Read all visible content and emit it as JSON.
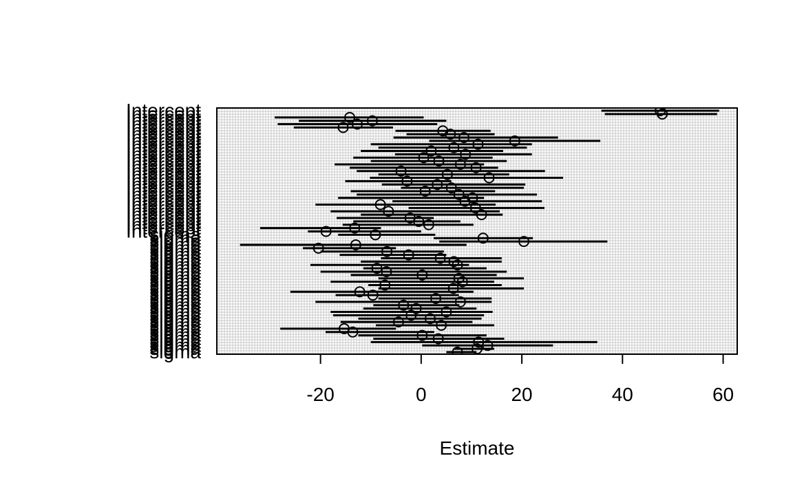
{
  "chart_data": {
    "type": "forest",
    "title": "",
    "xlabel": "Estimate",
    "ylabel": "",
    "xlim": [
      -40.6,
      62.8
    ],
    "xticks": [
      -20,
      0,
      20,
      40,
      60
    ],
    "xtick_labels": [
      "-20",
      "0",
      "20",
      "40",
      "60"
    ],
    "grid": true,
    "legend": "none",
    "row_labels": [
      "Intercept",
      "Intercept",
      "Intercept",
      "Intercept",
      "sigma",
      "sigma",
      "sigma",
      "sigma"
    ],
    "estimates": [
      {
        "est": 47.5,
        "lo": 35.8,
        "hi": 59.2
      },
      {
        "est": 47.9,
        "lo": 36.5,
        "hi": 58.8
      },
      {
        "est": -14.2,
        "lo": -29.1,
        "hi": 0.5
      },
      {
        "est": -9.7,
        "lo": -24.3,
        "hi": 5.0
      },
      {
        "est": -12.7,
        "lo": -28.5,
        "hi": 3.2
      },
      {
        "est": -15.5,
        "lo": -25.3,
        "hi": -5.6
      },
      {
        "est": 4.3,
        "lo": -5.1,
        "hi": 13.8
      },
      {
        "est": 5.8,
        "lo": -2.9,
        "hi": 14.6
      },
      {
        "est": 8.5,
        "lo": -5.5,
        "hi": 27.2
      },
      {
        "est": 18.6,
        "lo": 1.6,
        "hi": 35.6
      },
      {
        "est": 11.3,
        "lo": -10.0,
        "hi": 22.0
      },
      {
        "est": 6.5,
        "lo": -8.5,
        "hi": 21.0
      },
      {
        "est": 2.0,
        "lo": -12.0,
        "hi": 16.3
      },
      {
        "est": 8.8,
        "lo": -5.2,
        "hi": 22.0
      },
      {
        "est": 0.5,
        "lo": -13.5,
        "hi": 14.2
      },
      {
        "est": 3.5,
        "lo": -10.0,
        "hi": 17.0
      },
      {
        "est": 7.8,
        "lo": -17.2,
        "hi": 12.5
      },
      {
        "est": 10.9,
        "lo": -14.2,
        "hi": 15.3
      },
      {
        "est": -4.0,
        "lo": -12.8,
        "hi": 24.6
      },
      {
        "est": 5.2,
        "lo": -8.5,
        "hi": 17.5
      },
      {
        "est": 13.5,
        "lo": -10.2,
        "hi": 28.2
      },
      {
        "est": -2.8,
        "lo": -15.1,
        "hi": 6.0
      },
      {
        "est": 3.2,
        "lo": -7.8,
        "hi": 20.7
      },
      {
        "est": 6.0,
        "lo": -4.0,
        "hi": 20.4
      },
      {
        "est": 0.8,
        "lo": -14.0,
        "hi": 14.7
      },
      {
        "est": 7.5,
        "lo": -12.8,
        "hi": 23.0
      },
      {
        "est": 10.2,
        "lo": -16.5,
        "hi": 12.5
      },
      {
        "est": 8.7,
        "lo": -5.7,
        "hi": 24.0
      },
      {
        "est": -8.1,
        "lo": -21.0,
        "hi": 14.8
      },
      {
        "est": 10.8,
        "lo": -2.5,
        "hi": 24.5
      },
      {
        "est": -6.5,
        "lo": -18.0,
        "hi": 15.6
      },
      {
        "est": 12.0,
        "lo": -12.0,
        "hi": 16.2
      },
      {
        "est": -2.2,
        "lo": -16.8,
        "hi": 2.5
      },
      {
        "est": -0.5,
        "lo": -13.5,
        "hi": 7.8
      },
      {
        "est": 1.5,
        "lo": -15.6,
        "hi": 10.4
      },
      {
        "est": -13.2,
        "lo": -32.0,
        "hi": -8.0
      },
      {
        "est": -18.9,
        "lo": -22.5,
        "hi": 0.0
      },
      {
        "est": -9.1,
        "lo": -16.5,
        "hi": 2.8
      },
      {
        "est": 12.3,
        "lo": 2.5,
        "hi": 22.2
      },
      {
        "est": 20.4,
        "lo": 3.6,
        "hi": 37.0
      },
      {
        "est": -13.0,
        "lo": -36.0,
        "hi": 9.0
      },
      {
        "est": -20.4,
        "lo": -23.5,
        "hi": -5.0
      },
      {
        "est": -6.8,
        "lo": -20.0,
        "hi": 4.5
      },
      {
        "est": -2.5,
        "lo": -16.2,
        "hi": 5.0
      },
      {
        "est": 3.8,
        "lo": -8.0,
        "hi": 16.0
      },
      {
        "est": 6.5,
        "lo": -12.0,
        "hi": 16.0
      },
      {
        "est": 7.2,
        "lo": -22.0,
        "hi": 9.5
      },
      {
        "est": -8.8,
        "lo": -11.5,
        "hi": 13.0
      },
      {
        "est": -6.9,
        "lo": -20.0,
        "hi": 17.0
      },
      {
        "est": 0.2,
        "lo": -14.0,
        "hi": 15.0
      },
      {
        "est": 7.5,
        "lo": -8.5,
        "hi": 20.4
      },
      {
        "est": 8.2,
        "lo": -18.0,
        "hi": 14.5
      },
      {
        "est": -7.2,
        "lo": -10.5,
        "hi": 16.0
      },
      {
        "est": 6.4,
        "lo": -8.5,
        "hi": 20.4
      },
      {
        "est": -12.2,
        "lo": -26.0,
        "hi": 10.4
      },
      {
        "est": -9.6,
        "lo": -17.0,
        "hi": 7.5
      },
      {
        "est": 2.9,
        "lo": -8.5,
        "hi": 14.0
      },
      {
        "est": 7.8,
        "lo": -21.0,
        "hi": 14.0
      },
      {
        "est": -3.5,
        "lo": -9.5,
        "hi": 7.6
      },
      {
        "est": -1.0,
        "lo": -11.5,
        "hi": 11.0
      },
      {
        "est": 5.0,
        "lo": -18.0,
        "hi": 14.2
      },
      {
        "est": -2.0,
        "lo": -17.5,
        "hi": 12.5
      },
      {
        "est": 1.8,
        "lo": -12.5,
        "hi": 12.0
      },
      {
        "est": -4.5,
        "lo": -16.0,
        "hi": 10.2
      },
      {
        "est": 4.0,
        "lo": -9.0,
        "hi": 14.5
      },
      {
        "est": -15.3,
        "lo": -28.0,
        "hi": -5.0
      },
      {
        "est": -13.6,
        "lo": -19.0,
        "hi": 2.6
      },
      {
        "est": 0.2,
        "lo": -12.5,
        "hi": 13.0
      },
      {
        "est": 3.4,
        "lo": -9.5,
        "hi": 16.5
      },
      {
        "est": 11.4,
        "lo": -10.0,
        "hi": 35.0
      },
      {
        "est": 13.2,
        "lo": 0.2,
        "hi": 26.2
      },
      {
        "est": 11.1,
        "lo": 6.5,
        "hi": 14.5
      },
      {
        "est": 7.2,
        "lo": 5.0,
        "hi": 11.0
      }
    ]
  }
}
